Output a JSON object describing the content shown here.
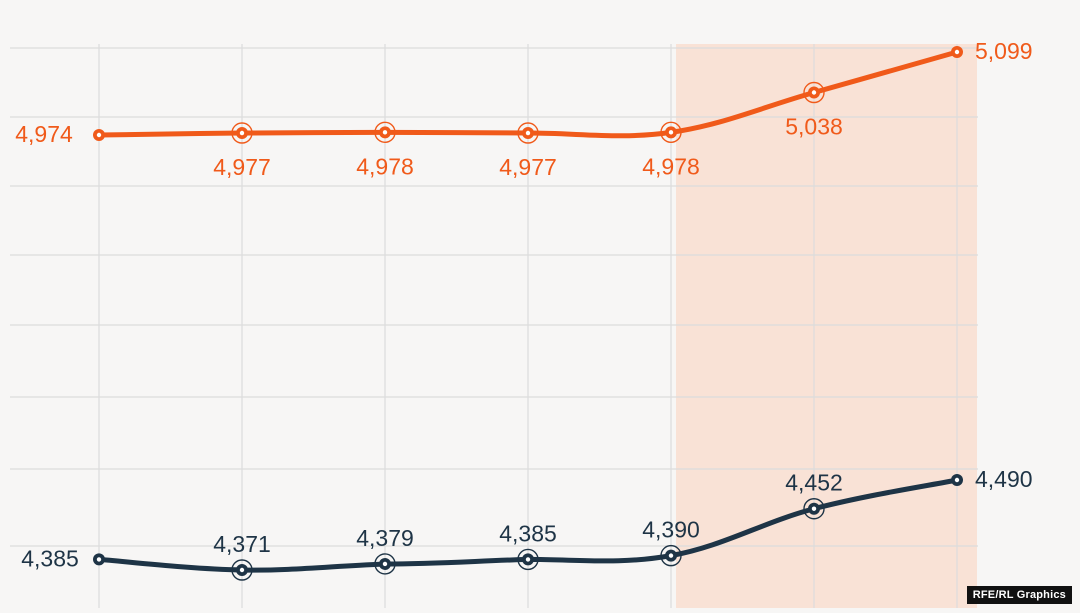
{
  "chart_data": {
    "type": "line",
    "x": [
      "",
      "",
      "",
      "",
      "",
      "",
      ""
    ],
    "series": [
      {
        "values": [
          4974,
          4977,
          4978,
          4977,
          4978,
          5038,
          5099
        ],
        "labels": [
          "4,974",
          "4,977",
          "4,978",
          "4,977",
          "4,978",
          "5,038",
          "5,099"
        ],
        "color": "#f05a1a"
      },
      {
        "values": [
          4385,
          4371,
          4379,
          4385,
          4390,
          4452,
          4490
        ],
        "labels": [
          "4,385",
          "4,371",
          "4,379",
          "4,385",
          "4,390",
          "4,452",
          "4,490"
        ],
        "color": "#1e3446"
      }
    ],
    "highlight_range": [
      4,
      6
    ],
    "highlight_color": "#f9e2d6",
    "grid": true
  },
  "credit": "RFE/RL Graphics"
}
